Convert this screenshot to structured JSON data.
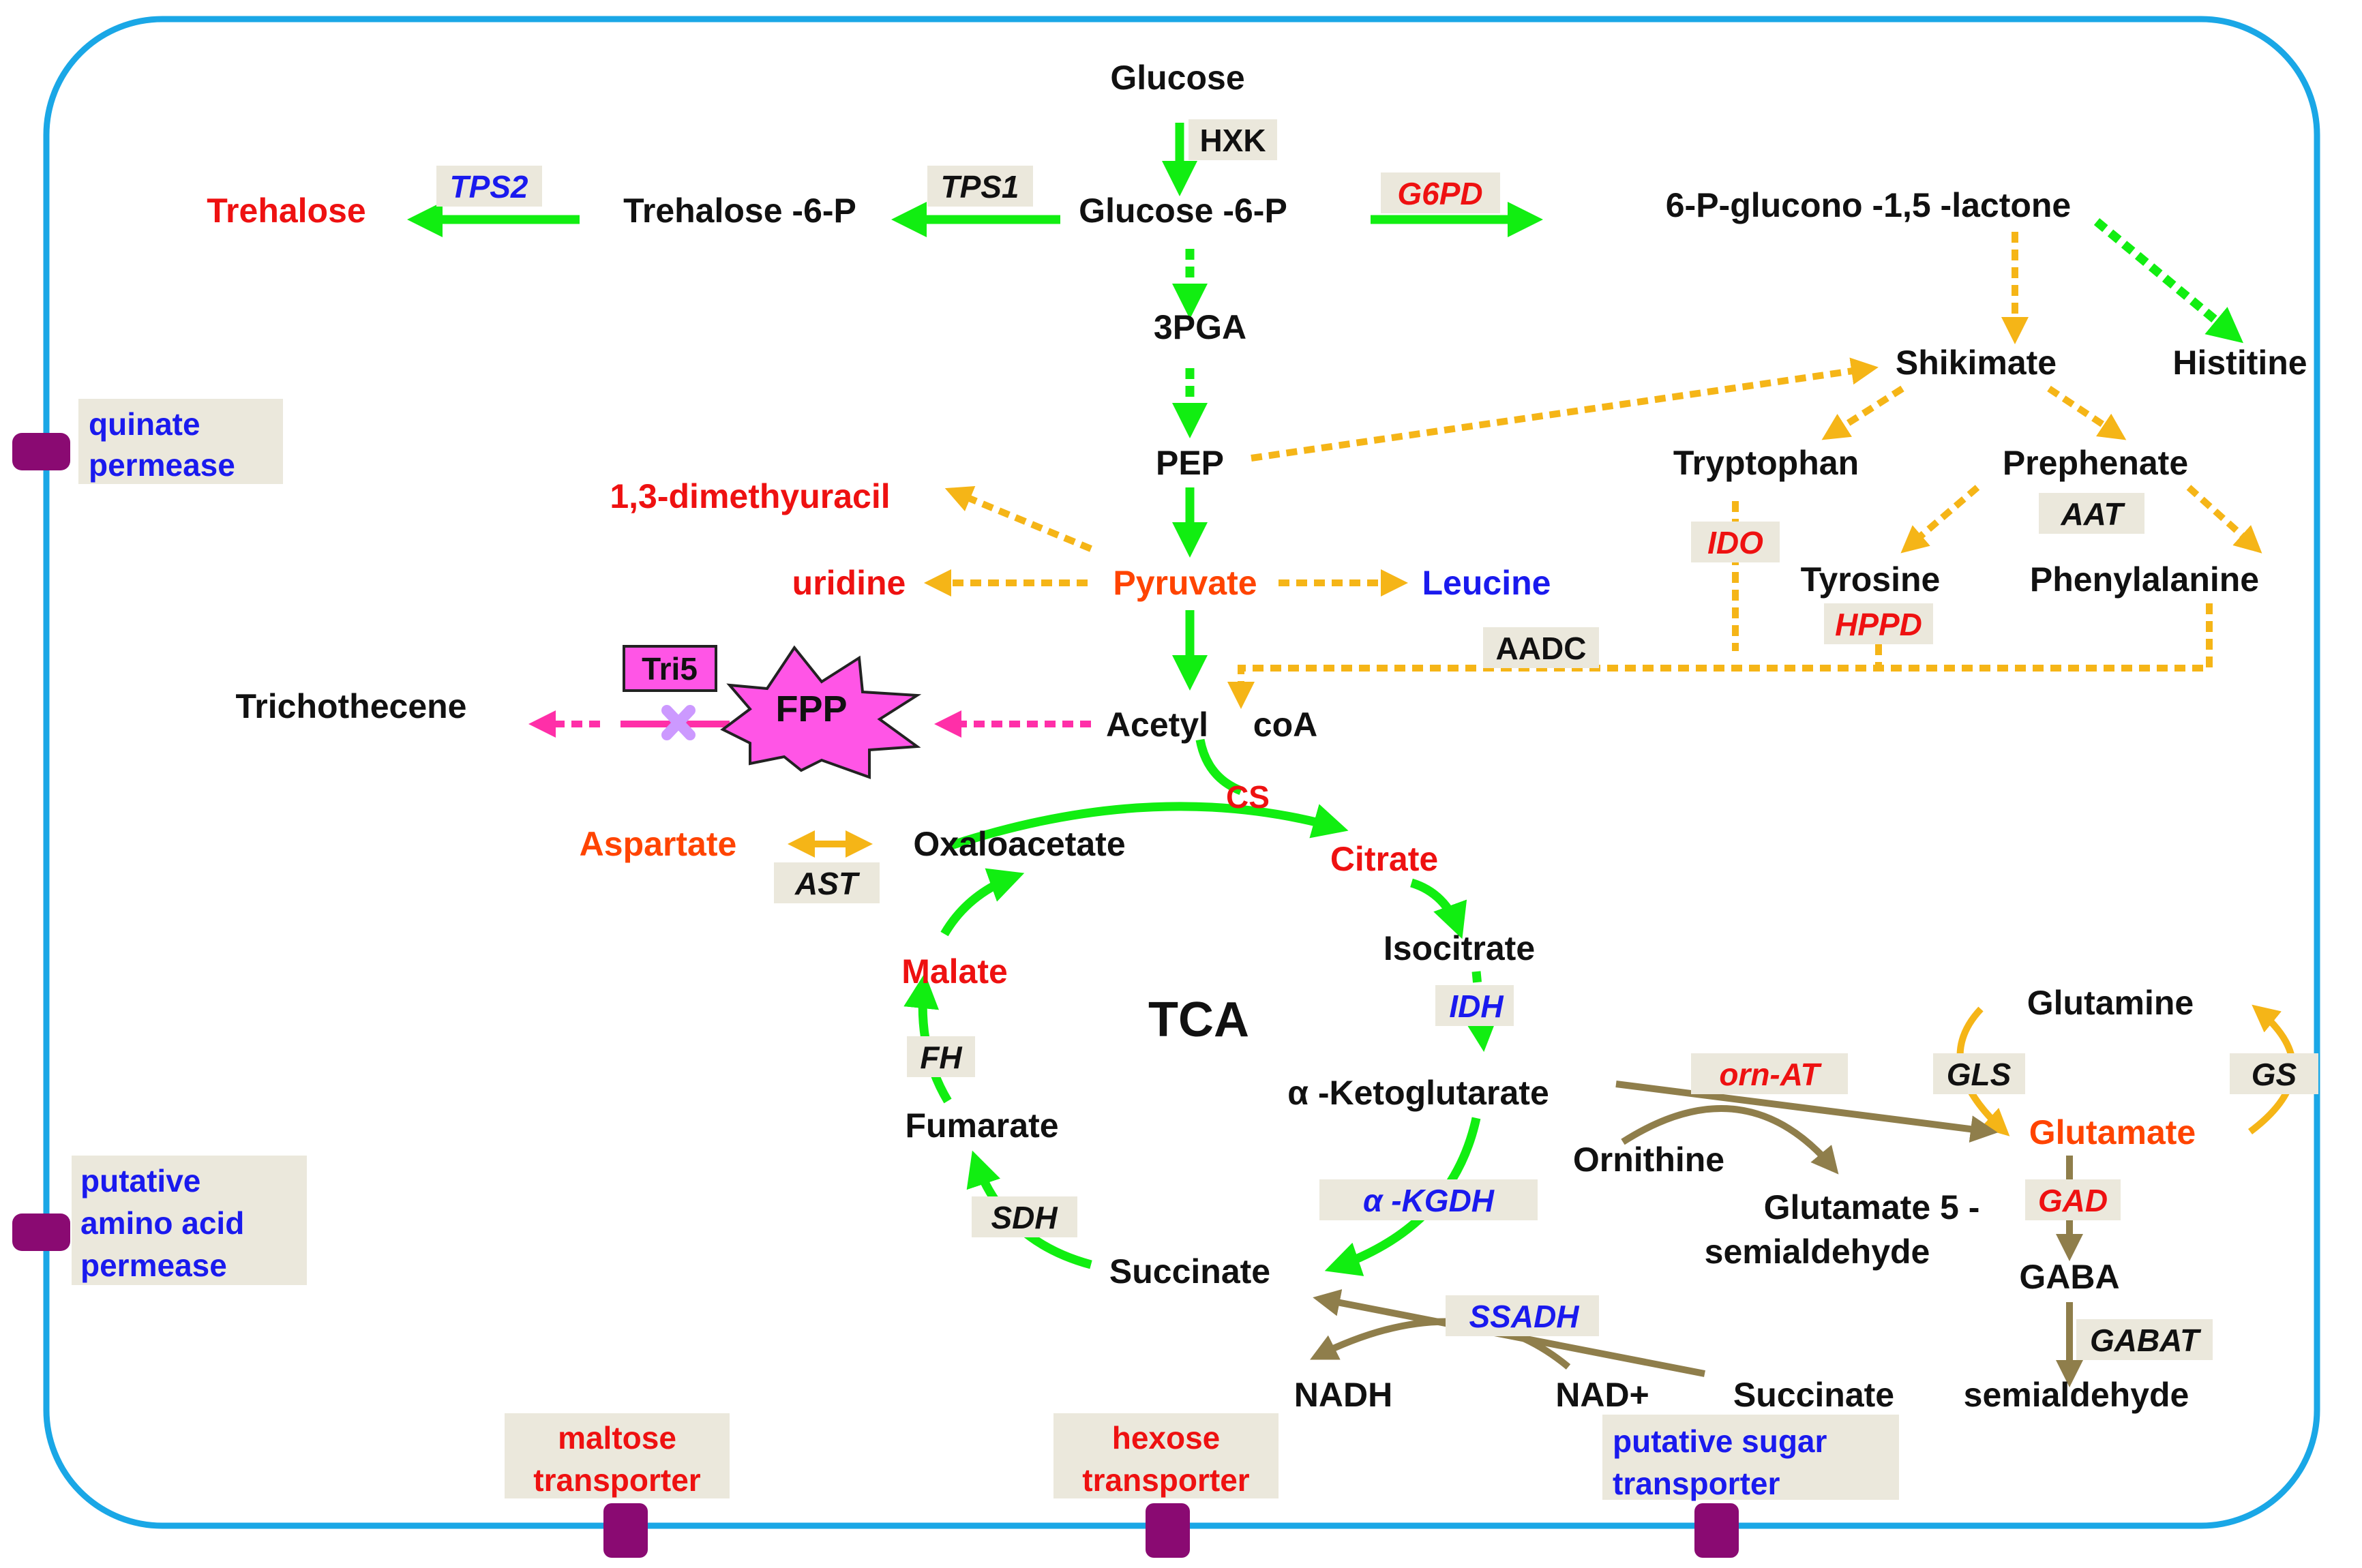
{
  "colors": {
    "black": "#111111",
    "red": "#ee1111",
    "orange_red": "#ff4400",
    "blue": "#1a1aee",
    "green": "#11ee11",
    "orange": "#f5b517",
    "pink": "#ff2fa8",
    "tan": "#8f7e4b",
    "cell_border": "#1aa7e6",
    "label_box": "#ebe8dc",
    "transporter": "#8a0a72",
    "fpp_fill": "#ff55e6",
    "tri5_fill": "#ff55e6",
    "inhibit_x": "#cc99ff"
  },
  "metabolites": {
    "glucose": "Glucose",
    "glucose_6_p": "Glucose  -6-P",
    "trehalose_6_p": "Trehalose  -6-P",
    "trehalose": "Trehalose",
    "gluconolactone": "6-P-glucono  -1,5 -lactone",
    "pga": "3PGA",
    "shikimate": "Shikimate",
    "histitine": "Histitine",
    "pep": "PEP",
    "tryptophan": "Tryptophan",
    "prephenate": "Prephenate",
    "dimethyuracil": "1,3-dimethyuracil",
    "uridine": "uridine",
    "pyruvate": "Pyruvate",
    "leucine": "Leucine",
    "tyrosine": "Tyrosine",
    "phenylalanine": "Phenylalanine",
    "trichothecene": "Trichothecene",
    "fpp": "FPP",
    "acetyl": "Acetyl",
    "coa": "coA",
    "aspartate": "Aspartate",
    "oxaloacetate": "Oxaloacetate",
    "citrate": "Citrate",
    "isocitrate": "Isocitrate",
    "malate": "Malate",
    "tca": "TCA",
    "ketoglutarate": "α -Ketoglutarate",
    "glutamine": "Glutamine",
    "glutamate": "Glutamate",
    "fumarate": "Fumarate",
    "ornithine": "Ornithine",
    "glu5sa_line1": "Glutamate 5  -",
    "glu5sa_line2": "semialdehyde",
    "succinate": "Succinate",
    "gaba": "GABA",
    "nadh": "NADH",
    "nad_plus": "NAD+",
    "succinate2": "Succinate",
    "semialdehyde": "semialdehyde"
  },
  "enzymes": {
    "hxk": "HXK",
    "tps2": "TPS2",
    "tps1": "TPS1",
    "g6pd": "G6PD",
    "aat": "AAT",
    "ido": "IDO",
    "hppd": "HPPD",
    "aadc": "AADC",
    "tri5": "Tri5",
    "cs": "CS",
    "ast": "AST",
    "idh": "IDH",
    "fh": "FH",
    "orn_at": "orn-AT",
    "gls": "GLS",
    "gs": "GS",
    "gad": "GAD",
    "akgdh": "α -KGDH",
    "sdh": "SDH",
    "ssadh": "SSADH",
    "gabat": "GABAT"
  },
  "transporters": {
    "quinate_l1": "quinate",
    "quinate_l2": "permease",
    "aa_l1": "putative",
    "aa_l2": "amino acid",
    "aa_l3": "permease",
    "maltose_l1": "maltose",
    "maltose_l2": "transporter",
    "hexose_l1": "hexose",
    "hexose_l2": "transporter",
    "sugar_l1": "putative sugar",
    "sugar_l2": "transporter"
  }
}
